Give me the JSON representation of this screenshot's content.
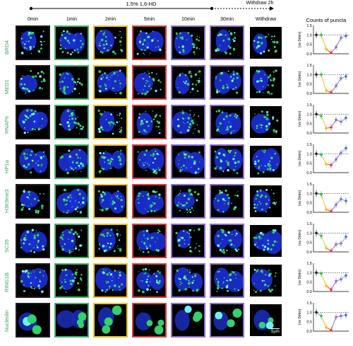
{
  "header": {
    "treatment_label": "1.5% 1,6-HD",
    "withdraw_label": "Withdraw 2h",
    "columns": [
      "0min",
      "1min",
      "2min",
      "5min",
      "10min",
      "30min",
      "Withdraw"
    ],
    "counts_title": "Counts of puncta"
  },
  "rows": [
    "BRD4",
    "MED1",
    "RNAPII",
    "HP1α",
    "H3K9me3",
    "SC35",
    "RING1B",
    "Nucleolin"
  ],
  "frame_colors": [
    "#1e1e1e",
    "#3fb56b",
    "#f3c11e",
    "#e23c3c",
    "#8e6fd1",
    "#8e6fd1",
    "#ffffff"
  ],
  "scale_bar": "5μm",
  "chart_common": {
    "ylabel": "(vs 0min)",
    "yticks": [
      "0.0",
      "0.5",
      "1.0",
      "1.5"
    ],
    "point_colors": [
      "#222222",
      "#3fb56b",
      "#f3c11e",
      "#e23c3c",
      "#8e6fd1",
      "#8e6fd1",
      "#3c6fd1"
    ]
  },
  "chart_data": [
    {
      "type": "line",
      "row": "BRD4",
      "x": [
        0,
        1,
        2,
        3,
        4,
        5,
        6
      ],
      "values": [
        1.0,
        1.0,
        0.25,
        0.05,
        0.35,
        0.85,
        0.95
      ],
      "ylim": [
        0,
        1.5
      ]
    },
    {
      "type": "line",
      "row": "MED1",
      "x": [
        0,
        1,
        2,
        3,
        4,
        5,
        6
      ],
      "values": [
        1.0,
        1.0,
        0.15,
        0.05,
        0.4,
        0.8,
        0.9
      ],
      "ylim": [
        0,
        1.5
      ]
    },
    {
      "type": "line",
      "row": "RNAPII",
      "x": [
        0,
        1,
        2,
        3,
        4,
        5,
        6
      ],
      "values": [
        1.0,
        0.9,
        0.25,
        0.3,
        0.7,
        0.6,
        0.8
      ],
      "ylim": [
        0,
        1.5
      ]
    },
    {
      "type": "line",
      "row": "HP1α",
      "x": [
        0,
        1,
        2,
        3,
        4,
        5,
        6
      ],
      "values": [
        1.0,
        0.95,
        0.45,
        0.4,
        0.7,
        1.05,
        1.3
      ],
      "ylim": [
        0,
        1.5
      ]
    },
    {
      "type": "line",
      "row": "H3K9me3",
      "x": [
        0,
        1,
        2,
        3,
        4,
        5,
        6
      ],
      "values": [
        1.0,
        0.95,
        0.15,
        0.05,
        0.4,
        0.7,
        0.6
      ],
      "ylim": [
        0,
        1.5
      ]
    },
    {
      "type": "line",
      "row": "SC35",
      "x": [
        0,
        1,
        2,
        3,
        4,
        5,
        6
      ],
      "values": [
        1.0,
        0.85,
        0.2,
        0.05,
        0.4,
        0.45,
        0.8
      ],
      "ylim": [
        0,
        1.5
      ]
    },
    {
      "type": "line",
      "row": "RING1B",
      "x": [
        0,
        1,
        2,
        3,
        4,
        5,
        6
      ],
      "values": [
        1.0,
        0.95,
        0.3,
        0.1,
        0.55,
        0.65,
        0.85
      ],
      "ylim": [
        0,
        1.5
      ]
    },
    {
      "type": "line",
      "row": "Nucleolin",
      "x": [
        0,
        1,
        2,
        3,
        4,
        5,
        6
      ],
      "values": [
        1.0,
        0.8,
        0.2,
        0.05,
        0.75,
        0.8,
        0.85
      ],
      "ylim": [
        0,
        1.5
      ]
    }
  ]
}
